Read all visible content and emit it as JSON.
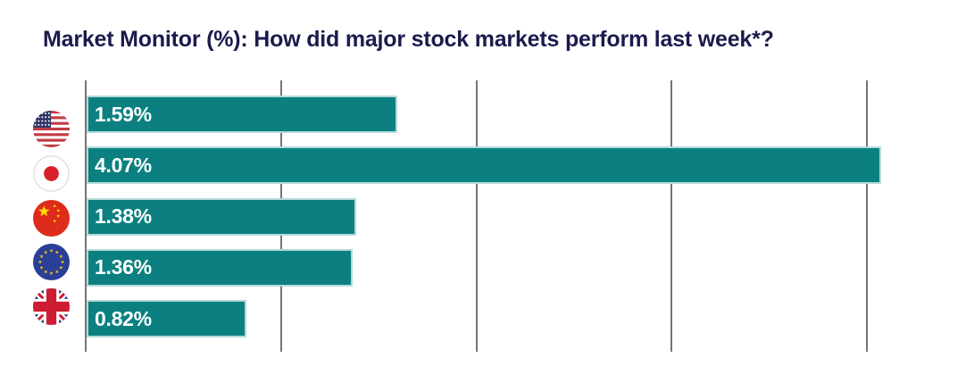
{
  "title": "Market Monitor (%): How did major stock markets perform last week*?",
  "colors": {
    "bar": "#0C8080",
    "title": "#1B1B4D",
    "gridline": "#757575",
    "value_label": "#FFFFFF",
    "background": "#FFFFFF"
  },
  "chart_data": {
    "type": "bar",
    "orientation": "horizontal",
    "title": "Market Monitor (%): How did major stock markets perform last week*?",
    "categories": [
      "United States",
      "Japan",
      "China",
      "European Union",
      "United Kingdom"
    ],
    "icons": [
      "us-flag-icon",
      "japan-flag-icon",
      "china-flag-icon",
      "eu-flag-icon",
      "uk-flag-icon"
    ],
    "values": [
      1.59,
      4.07,
      1.38,
      1.36,
      0.82
    ],
    "labels": [
      "1.59%",
      "4.07%",
      "1.38%",
      "1.36%",
      "0.82%"
    ],
    "xlabel": "",
    "ylabel": "",
    "xlim": [
      0,
      4
    ],
    "gridlines": [
      0,
      1,
      2,
      3,
      4
    ],
    "grid": true,
    "legend": false,
    "value_labels_position": "inside-left"
  }
}
